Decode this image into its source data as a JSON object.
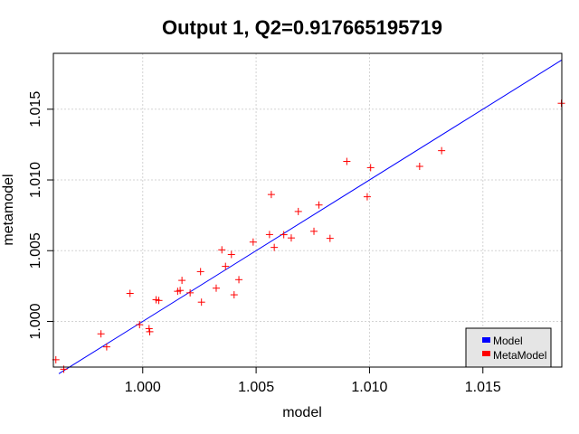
{
  "chart_data": {
    "type": "scatter",
    "title": "Output 1, Q2=0.917665195719",
    "xlabel": "model",
    "ylabel": "metamodel",
    "xlim": [
      0.99606,
      1.01848
    ],
    "ylim": [
      0.99677,
      1.01895
    ],
    "x_ticks": [
      1.0,
      1.005,
      1.01,
      1.015
    ],
    "x_tick_labels": [
      "1.000",
      "1.005",
      "1.010",
      "1.015"
    ],
    "y_ticks": [
      1.0,
      1.005,
      1.01,
      1.015
    ],
    "y_tick_labels": [
      "1.000",
      "1.005",
      "1.010",
      "1.015"
    ],
    "grid": true,
    "legend_position": "bottom-right",
    "series": [
      {
        "name": "Model",
        "kind": "line",
        "color": "#0000ff",
        "x": [
          0.9963,
          1.01848
        ],
        "y": [
          0.9963,
          1.01848
        ]
      },
      {
        "name": "MetaModel",
        "kind": "points",
        "marker": "+",
        "color": "#ff0000",
        "points": [
          [
            0.99617,
            0.99729
          ],
          [
            0.99652,
            0.99662
          ],
          [
            0.99816,
            0.99912
          ],
          [
            0.99841,
            0.9982
          ],
          [
            0.99944,
            1.00198
          ],
          [
            0.99986,
            0.99977
          ],
          [
            1.00031,
            0.99927
          ],
          [
            1.00028,
            0.99949
          ],
          [
            1.00059,
            1.00153
          ],
          [
            1.00071,
            1.00148
          ],
          [
            1.00154,
            1.00213
          ],
          [
            1.00165,
            1.00219
          ],
          [
            1.00173,
            1.0029
          ],
          [
            1.00209,
            1.00202
          ],
          [
            1.00255,
            1.00352
          ],
          [
            1.00259,
            1.00136
          ],
          [
            1.00324,
            1.00235
          ],
          [
            1.00349,
            1.00506
          ],
          [
            1.00365,
            1.00389
          ],
          [
            1.00391,
            1.00473
          ],
          [
            1.00403,
            1.00188
          ],
          [
            1.00424,
            1.00295
          ],
          [
            1.00487,
            1.00561
          ],
          [
            1.00559,
            1.00614
          ],
          [
            1.00567,
            1.00897
          ],
          [
            1.0058,
            1.00523
          ],
          [
            1.00622,
            1.00613
          ],
          [
            1.00655,
            1.0059
          ],
          [
            1.00686,
            1.00777
          ],
          [
            1.00755,
            1.00637
          ],
          [
            1.00777,
            1.00823
          ],
          [
            1.00826,
            1.00587
          ],
          [
            1.009,
            1.01131
          ],
          [
            1.0099,
            1.00881
          ],
          [
            1.01005,
            1.01087
          ],
          [
            1.01221,
            1.01096
          ],
          [
            1.01318,
            1.01207
          ],
          [
            1.01846,
            1.01542
          ]
        ]
      }
    ]
  }
}
